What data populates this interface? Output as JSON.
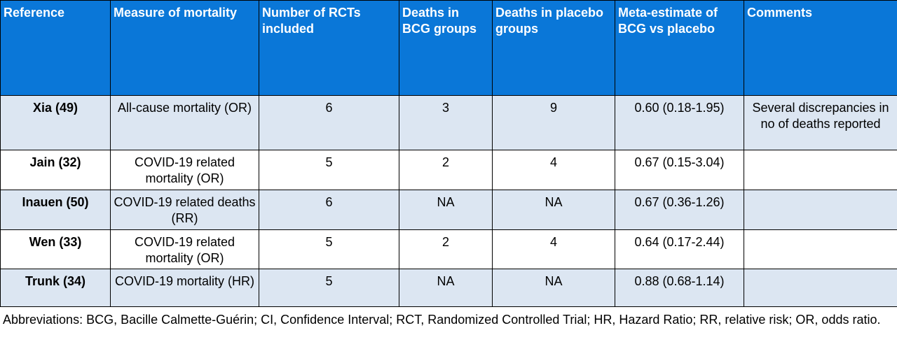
{
  "table": {
    "headers": [
      "Reference",
      "Measure of mortality",
      "Number of RCTs included",
      "Deaths in BCG groups",
      "Deaths in placebo groups",
      "Meta-estimate of BCG vs placebo",
      "Comments"
    ],
    "rows": [
      {
        "reference": "Xia (49)",
        "measure": "All-cause mortality (OR)",
        "rcts": "6",
        "deaths_bcg": "3",
        "deaths_placebo": "9",
        "estimate": "0.60 (0.18-1.95)",
        "comments": "Several discrepancies in no of deaths reported"
      },
      {
        "reference": "Jain (32)",
        "measure": "COVID-19 related mortality (OR)",
        "rcts": "5",
        "deaths_bcg": "2",
        "deaths_placebo": "4",
        "estimate": "0.67 (0.15-3.04)",
        "comments": ""
      },
      {
        "reference": "Inauen (50)",
        "measure": "COVID-19 related deaths (RR)",
        "rcts": "6",
        "deaths_bcg": "NA",
        "deaths_placebo": "NA",
        "estimate": "0.67 (0.36-1.26)",
        "comments": ""
      },
      {
        "reference": "Wen (33)",
        "measure": "COVID-19 related mortality (OR)",
        "rcts": "5",
        "deaths_bcg": "2",
        "deaths_placebo": "4",
        "estimate": "0.64 (0.17-2.44)",
        "comments": ""
      },
      {
        "reference": "Trunk (34)",
        "measure": "COVID-19 mortality (HR)",
        "rcts": "5",
        "deaths_bcg": "NA",
        "deaths_placebo": "NA",
        "estimate": "0.88 (0.68-1.14)",
        "comments": ""
      }
    ]
  },
  "footnote": "Abbreviations: BCG, Bacille Calmette-Guérin; CI, Confidence Interval; RCT, Randomized Controlled Trial; HR, Hazard Ratio; RR, relative risk; OR, odds ratio.",
  "colors": {
    "header_bg": "#0a77d8",
    "header_text": "#ffffff",
    "row_shade": "#dce6f2",
    "border": "#000000"
  }
}
